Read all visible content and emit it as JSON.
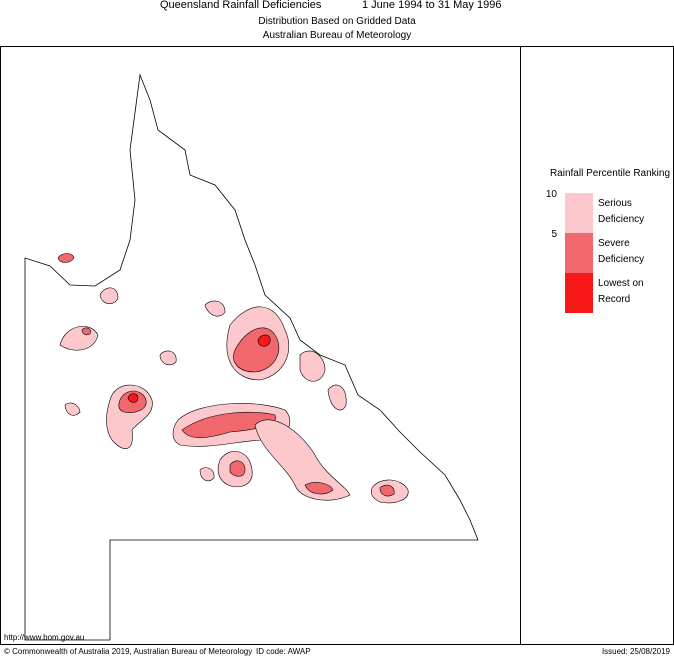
{
  "header": {
    "title": "Queensland Rainfall Deficiencies",
    "period": "1 June 1994 to 31 May 1996",
    "subtitle": "Distribution Based on Gridded Data",
    "source": "Australian Bureau of Meteorology"
  },
  "legend": {
    "title": "Rainfall Percentile Ranking",
    "ticks": [
      "10",
      "5"
    ],
    "items": [
      {
        "label": [
          "Serious",
          "Deficiency"
        ],
        "color": "#fcc8cc"
      },
      {
        "label": [
          "Severe",
          "Deficiency"
        ],
        "color": "#f0686e"
      },
      {
        "label": [
          "Lowest on",
          "Record"
        ],
        "color": "#f81818"
      }
    ]
  },
  "footer": {
    "url": "http://www.bom.gov.au",
    "copyright": "© Commonwealth of Australia 2019, Australian Bureau of Meteorology",
    "id_code": "ID code: AWAP",
    "issued": "Issued: 25/08/2019"
  }
}
